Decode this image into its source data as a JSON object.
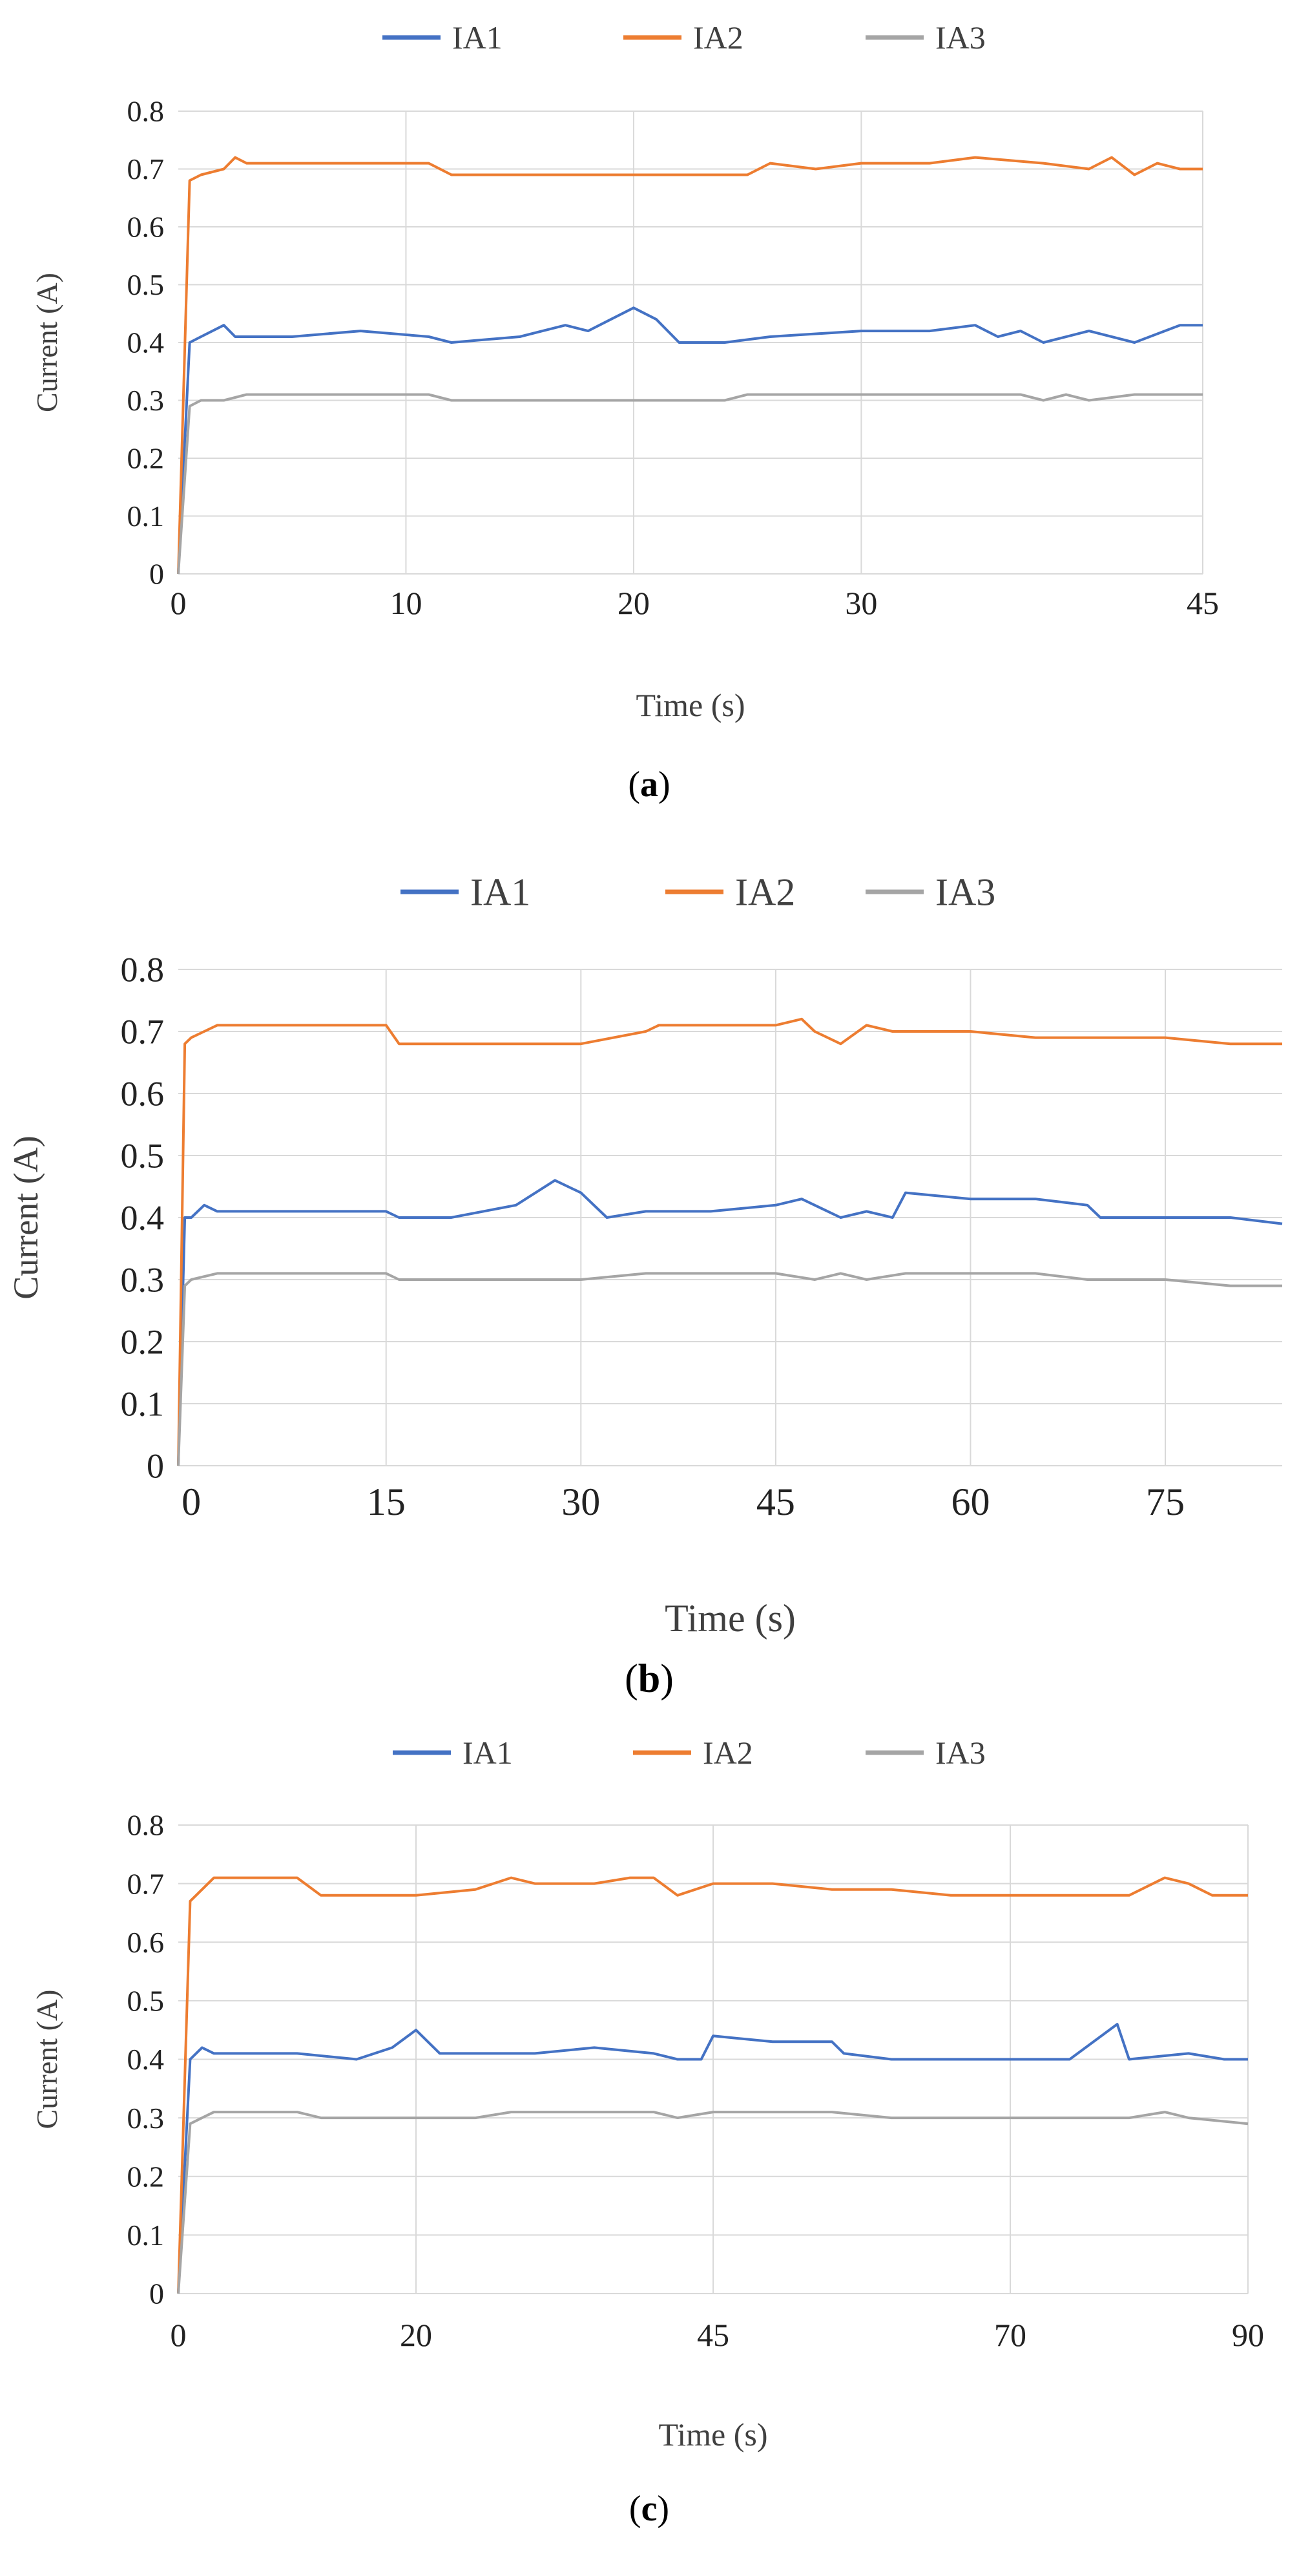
{
  "colors": {
    "IA1": "#4472c4",
    "IA2": "#ed7d31",
    "IA3": "#a5a5a5"
  },
  "chart_data": [
    {
      "type": "line",
      "panel": "a",
      "title": "",
      "xlabel": "Time (s)",
      "ylabel": "Current (A)",
      "xlim": [
        0,
        45
      ],
      "ylim": [
        0,
        0.8
      ],
      "y_ticks": [
        "0",
        "0.1",
        "0.2",
        "0.3",
        "0.4",
        "0.5",
        "0.6",
        "0.7",
        "0.8"
      ],
      "x_ticks": [
        "0",
        "10",
        "20",
        "30",
        "45"
      ],
      "legend": [
        "IA1",
        "IA2",
        "IA3"
      ],
      "legend_position": "top",
      "grid": "horizontal",
      "series": [
        {
          "name": "IA1",
          "x": [
            0,
            0.5,
            1,
            2,
            2.5,
            3,
            5,
            8,
            11,
            12,
            15,
            16,
            17,
            18,
            19,
            20,
            21,
            22,
            24,
            26,
            30,
            33,
            35,
            36,
            37,
            38,
            40,
            42,
            44,
            45
          ],
          "values": [
            0,
            0.4,
            0.41,
            0.43,
            0.41,
            0.41,
            0.41,
            0.42,
            0.41,
            0.4,
            0.41,
            0.42,
            0.43,
            0.42,
            0.44,
            0.46,
            0.44,
            0.4,
            0.4,
            0.41,
            0.42,
            0.42,
            0.43,
            0.41,
            0.42,
            0.4,
            0.42,
            0.4,
            0.43,
            0.43
          ]
        },
        {
          "name": "IA2",
          "x": [
            0,
            0.5,
            1,
            2,
            2.5,
            3,
            5,
            8,
            11,
            12,
            15,
            20,
            25,
            26,
            28,
            30,
            33,
            35,
            38,
            40,
            41,
            42,
            43,
            44,
            45
          ],
          "values": [
            0,
            0.68,
            0.69,
            0.7,
            0.72,
            0.71,
            0.71,
            0.71,
            0.71,
            0.69,
            0.69,
            0.69,
            0.69,
            0.71,
            0.7,
            0.71,
            0.71,
            0.72,
            0.71,
            0.7,
            0.72,
            0.69,
            0.71,
            0.7,
            0.7
          ]
        },
        {
          "name": "IA3",
          "x": [
            0,
            0.5,
            1,
            2,
            3,
            5,
            10,
            11,
            12,
            15,
            20,
            22,
            24,
            25,
            26,
            30,
            35,
            37,
            38,
            39,
            40,
            42,
            44,
            45
          ],
          "values": [
            0,
            0.29,
            0.3,
            0.3,
            0.31,
            0.31,
            0.31,
            0.31,
            0.3,
            0.3,
            0.3,
            0.3,
            0.3,
            0.31,
            0.31,
            0.31,
            0.31,
            0.31,
            0.3,
            0.31,
            0.3,
            0.31,
            0.31,
            0.31
          ]
        }
      ]
    },
    {
      "type": "line",
      "panel": "b",
      "title": "",
      "xlabel": "Time (s)",
      "ylabel": "Current (A)",
      "xlim": [
        -1,
        84
      ],
      "ylim": [
        0,
        0.8
      ],
      "y_ticks": [
        "0",
        "0.1",
        "0.2",
        "0.3",
        "0.4",
        "0.5",
        "0.6",
        "0.7",
        "0.8"
      ],
      "x_ticks": [
        "0",
        "15",
        "30",
        "45",
        "60",
        "75"
      ],
      "legend": [
        "IA1",
        "IA2",
        "IA3"
      ],
      "legend_position": "top",
      "grid": "horizontal",
      "series": [
        {
          "name": "IA1",
          "x": [
            -1,
            -0.5,
            0,
            1,
            2,
            5,
            10,
            15,
            16,
            20,
            25,
            28,
            30,
            32,
            35,
            40,
            45,
            47,
            50,
            52,
            54,
            55,
            60,
            65,
            69,
            70,
            75,
            80,
            84
          ],
          "values": [
            0,
            0.4,
            0.4,
            0.42,
            0.41,
            0.41,
            0.41,
            0.41,
            0.4,
            0.4,
            0.42,
            0.46,
            0.44,
            0.4,
            0.41,
            0.41,
            0.42,
            0.43,
            0.4,
            0.41,
            0.4,
            0.44,
            0.43,
            0.43,
            0.42,
            0.4,
            0.4,
            0.4,
            0.39
          ]
        },
        {
          "name": "IA2",
          "x": [
            -1,
            -0.5,
            0,
            1,
            2,
            5,
            10,
            15,
            16,
            20,
            30,
            35,
            36,
            40,
            45,
            47,
            48,
            50,
            52,
            54,
            55,
            60,
            65,
            70,
            75,
            80,
            84
          ],
          "values": [
            0,
            0.68,
            0.69,
            0.7,
            0.71,
            0.71,
            0.71,
            0.71,
            0.68,
            0.68,
            0.68,
            0.7,
            0.71,
            0.71,
            0.71,
            0.72,
            0.7,
            0.68,
            0.71,
            0.7,
            0.7,
            0.7,
            0.69,
            0.69,
            0.69,
            0.68,
            0.68
          ]
        },
        {
          "name": "IA3",
          "x": [
            -1,
            -0.5,
            0,
            2,
            5,
            10,
            15,
            16,
            20,
            30,
            35,
            36,
            40,
            45,
            48,
            50,
            52,
            55,
            60,
            65,
            69,
            70,
            75,
            80,
            84
          ],
          "values": [
            0,
            0.29,
            0.3,
            0.31,
            0.31,
            0.31,
            0.31,
            0.3,
            0.3,
            0.3,
            0.31,
            0.31,
            0.31,
            0.31,
            0.3,
            0.31,
            0.3,
            0.31,
            0.31,
            0.31,
            0.3,
            0.3,
            0.3,
            0.29,
            0.29
          ]
        }
      ]
    },
    {
      "type": "line",
      "panel": "c",
      "title": "",
      "xlabel": "Time (s)",
      "ylabel": "Current (A)",
      "xlim": [
        0,
        90
      ],
      "ylim": [
        0,
        0.8
      ],
      "y_ticks": [
        "0",
        "0.1",
        "0.2",
        "0.3",
        "0.4",
        "0.5",
        "0.6",
        "0.7",
        "0.8"
      ],
      "x_ticks": [
        "0",
        "20",
        "45",
        "70",
        "90"
      ],
      "legend": [
        "IA1",
        "IA2",
        "IA3"
      ],
      "legend_position": "top",
      "grid": "horizontal",
      "series": [
        {
          "name": "IA1",
          "x": [
            0,
            1,
            2,
            3,
            5,
            10,
            15,
            18,
            20,
            21,
            22,
            25,
            30,
            35,
            40,
            42,
            44,
            45,
            50,
            55,
            56,
            60,
            65,
            70,
            75,
            79,
            80,
            85,
            88,
            90
          ],
          "values": [
            0,
            0.4,
            0.42,
            0.41,
            0.41,
            0.41,
            0.4,
            0.42,
            0.45,
            0.43,
            0.41,
            0.41,
            0.41,
            0.42,
            0.41,
            0.4,
            0.4,
            0.44,
            0.43,
            0.43,
            0.41,
            0.4,
            0.4,
            0.4,
            0.4,
            0.46,
            0.4,
            0.41,
            0.4,
            0.4
          ]
        },
        {
          "name": "IA2",
          "x": [
            0,
            1,
            2,
            3,
            5,
            10,
            12,
            15,
            20,
            25,
            28,
            30,
            35,
            38,
            40,
            42,
            45,
            50,
            55,
            60,
            65,
            70,
            75,
            80,
            83,
            85,
            87,
            90
          ],
          "values": [
            0,
            0.67,
            0.69,
            0.71,
            0.71,
            0.71,
            0.68,
            0.68,
            0.68,
            0.69,
            0.71,
            0.7,
            0.7,
            0.71,
            0.71,
            0.68,
            0.7,
            0.7,
            0.69,
            0.69,
            0.68,
            0.68,
            0.68,
            0.68,
            0.71,
            0.7,
            0.68,
            0.68
          ]
        },
        {
          "name": "IA3",
          "x": [
            0,
            1,
            2,
            3,
            5,
            10,
            12,
            15,
            20,
            25,
            28,
            30,
            35,
            40,
            42,
            45,
            50,
            55,
            60,
            65,
            70,
            75,
            80,
            83,
            85,
            90
          ],
          "values": [
            0,
            0.29,
            0.3,
            0.31,
            0.31,
            0.31,
            0.3,
            0.3,
            0.3,
            0.3,
            0.31,
            0.31,
            0.31,
            0.31,
            0.3,
            0.31,
            0.31,
            0.31,
            0.3,
            0.3,
            0.3,
            0.3,
            0.3,
            0.31,
            0.3,
            0.29
          ]
        }
      ]
    }
  ]
}
